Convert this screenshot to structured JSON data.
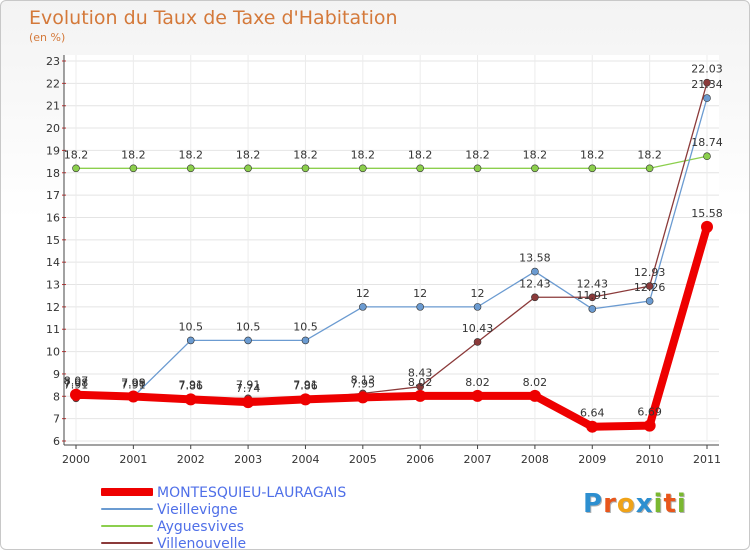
{
  "chart_data": {
    "type": "line",
    "title": "Evolution du Taux de Taxe d'Habitation",
    "subtitle": "(en %)",
    "x": [
      "2000",
      "2001",
      "2002",
      "2003",
      "2004",
      "2005",
      "2006",
      "2007",
      "2008",
      "2009",
      "2010",
      "2011"
    ],
    "ylim": [
      6,
      23
    ],
    "yticks": [
      "6",
      "7",
      "8",
      "9",
      "10",
      "11",
      "12",
      "13",
      "14",
      "15",
      "16",
      "17",
      "18",
      "19",
      "20",
      "21",
      "22",
      "23"
    ],
    "series": [
      {
        "name": "MONTESQUIEU-LAURAGAIS",
        "color": "#ee0000",
        "values": [
          8.07,
          7.99,
          7.86,
          7.74,
          7.86,
          7.95,
          8.02,
          8.02,
          8.02,
          6.64,
          6.69,
          15.58
        ],
        "labels": [
          "8.07",
          "7.99",
          "7.86",
          "7.74",
          "7.86",
          "7.95",
          "8.02",
          "8.02",
          "8.02",
          "6.64",
          "6.69",
          "15.58"
        ]
      },
      {
        "name": "Vieillevigne",
        "color": "#6b9bd1",
        "values": [
          7.98,
          7.98,
          10.5,
          10.5,
          10.5,
          12,
          12,
          12,
          13.58,
          11.91,
          12.26,
          21.34
        ],
        "labels": [
          "7.98",
          "7.98",
          "10.5",
          "10.5",
          "10.5",
          "12",
          "12",
          "12",
          "13.58",
          "11.91",
          "12.26",
          "21.34"
        ]
      },
      {
        "name": "Ayguesvives",
        "color": "#8ccf4d",
        "values": [
          18.2,
          18.2,
          18.2,
          18.2,
          18.2,
          18.2,
          18.2,
          18.2,
          18.2,
          18.2,
          18.2,
          18.74
        ],
        "labels": [
          "18.2",
          "18.2",
          "18.2",
          "18.2",
          "18.2",
          "18.2",
          "18.2",
          "18.2",
          "18.2",
          "18.2",
          "18.2",
          "18.74"
        ]
      },
      {
        "name": "Villenouvelle",
        "color": "#8b3a3a",
        "values": [
          7.91,
          7.91,
          7.91,
          7.91,
          7.91,
          8.13,
          8.43,
          10.43,
          12.43,
          12.43,
          12.93,
          22.03
        ],
        "labels": [
          "7.91",
          "7.91",
          "7.91",
          "7.91",
          "7.91",
          "8.13",
          "8.43",
          "10.43",
          "12.43",
          "12.43",
          "12.93",
          "22.03"
        ]
      }
    ]
  },
  "legend": {
    "items": [
      {
        "label": "MONTESQUIEU-LAURAGAIS",
        "color": "#ee0000"
      },
      {
        "label": "Vieillevigne",
        "color": "#6b9bd1"
      },
      {
        "label": "Ayguesvives",
        "color": "#8ccf4d"
      },
      {
        "label": "Villenouvelle",
        "color": "#8b3a3a"
      }
    ]
  },
  "logo": {
    "letters": [
      "P",
      "r",
      "o",
      "x",
      "i",
      "t",
      "i"
    ],
    "colors": [
      "#2d8fd0",
      "#e8561b",
      "#f0a318",
      "#2d8fd0",
      "#7ab830",
      "#e8561b",
      "#7ab830"
    ]
  }
}
